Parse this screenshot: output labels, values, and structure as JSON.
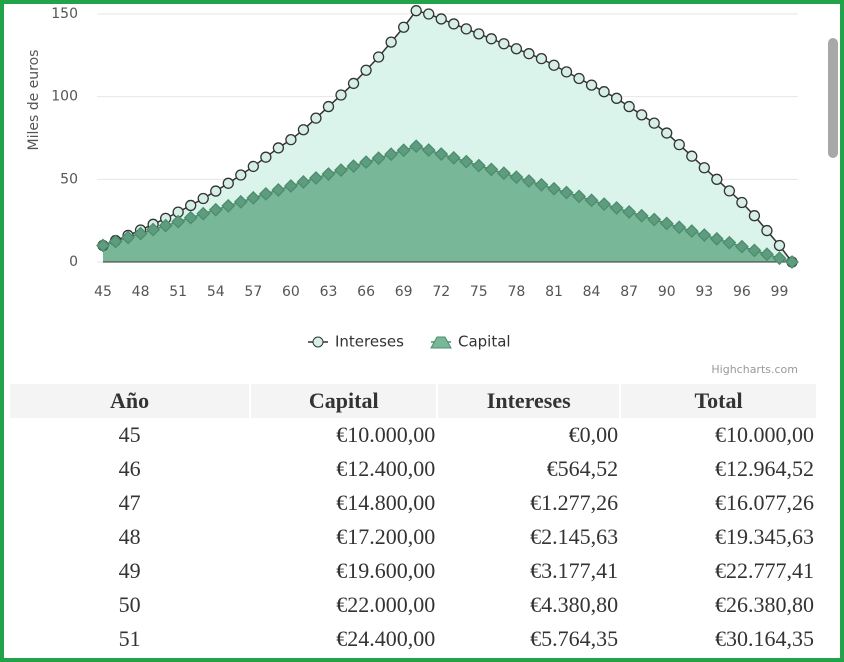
{
  "chart_data": {
    "type": "area",
    "stacking": "normal",
    "y_axis_title": "Miles de euros",
    "credits": "Highcharts.com",
    "x": [
      45,
      46,
      47,
      48,
      49,
      50,
      51,
      52,
      53,
      54,
      55,
      56,
      57,
      58,
      59,
      60,
      61,
      62,
      63,
      64,
      65,
      66,
      67,
      68,
      69,
      70,
      71,
      72,
      73,
      74,
      75,
      76,
      77,
      78,
      79,
      80,
      81,
      82,
      83,
      84,
      85,
      86,
      87,
      88,
      89,
      90,
      91,
      92,
      93,
      94,
      95,
      96,
      97,
      98,
      99,
      100
    ],
    "xlim": [
      45,
      100
    ],
    "xticks": [
      45,
      48,
      51,
      54,
      57,
      60,
      63,
      66,
      69,
      72,
      75,
      78,
      81,
      84,
      87,
      90,
      93,
      96,
      99
    ],
    "ylim": [
      0,
      150
    ],
    "yticks": [
      0,
      50,
      100,
      150
    ],
    "grid": true,
    "series": [
      {
        "name": "Intereses",
        "color": "#333333",
        "marker_fill": "#d6efe6",
        "fill": "#daf4ec",
        "marker": "circle",
        "values": [
          0,
          0.56,
          1.28,
          2.15,
          3.18,
          4.38,
          5.76,
          7.4,
          9.2,
          11.3,
          13.6,
          16.2,
          19,
          22.2,
          25.4,
          28,
          31.6,
          36.2,
          40.8,
          45.4,
          50,
          55.6,
          61.2,
          67.8,
          74.4,
          82,
          82.3,
          81.7,
          81,
          80.3,
          79.7,
          79,
          78.3,
          77.7,
          77,
          76.3,
          74.7,
          73,
          71.3,
          69.7,
          68,
          66.3,
          63.7,
          61,
          58.3,
          54.7,
          50,
          45.3,
          40.7,
          36,
          31.3,
          26.7,
          21,
          14.3,
          7.7,
          0
        ]
      },
      {
        "name": "Capital",
        "color": "#4f8c6f",
        "marker_fill": "#5e9c7e",
        "fill": "#78b899",
        "marker": "diamond",
        "values": [
          10,
          12.4,
          14.8,
          17.2,
          19.6,
          22,
          24.4,
          26.8,
          29.2,
          31.6,
          34,
          36.4,
          38.8,
          41.2,
          43.6,
          46,
          48.4,
          50.8,
          53.2,
          55.6,
          58,
          60.4,
          62.8,
          65.2,
          67.6,
          70,
          67.7,
          65.3,
          63,
          60.7,
          58.3,
          56,
          53.7,
          51.3,
          49,
          46.7,
          44.3,
          42,
          39.7,
          37.3,
          35,
          32.7,
          30.3,
          28,
          25.7,
          23.3,
          21,
          18.7,
          16.3,
          14,
          11.7,
          9.3,
          7,
          4.7,
          2.3,
          0
        ]
      }
    ]
  },
  "table": {
    "columns": [
      "Año",
      "Capital",
      "Intereses",
      "Total"
    ],
    "rows": [
      [
        "45",
        "€10.000,00",
        "€0,00",
        "€10.000,00"
      ],
      [
        "46",
        "€12.400,00",
        "€564,52",
        "€12.964,52"
      ],
      [
        "47",
        "€14.800,00",
        "€1.277,26",
        "€16.077,26"
      ],
      [
        "48",
        "€17.200,00",
        "€2.145,63",
        "€19.345,63"
      ],
      [
        "49",
        "€19.600,00",
        "€3.177,41",
        "€22.777,41"
      ],
      [
        "50",
        "€22.000,00",
        "€4.380,80",
        "€26.380,80"
      ],
      [
        "51",
        "€24.400,00",
        "€5.764,35",
        "€30.164,35"
      ]
    ]
  }
}
